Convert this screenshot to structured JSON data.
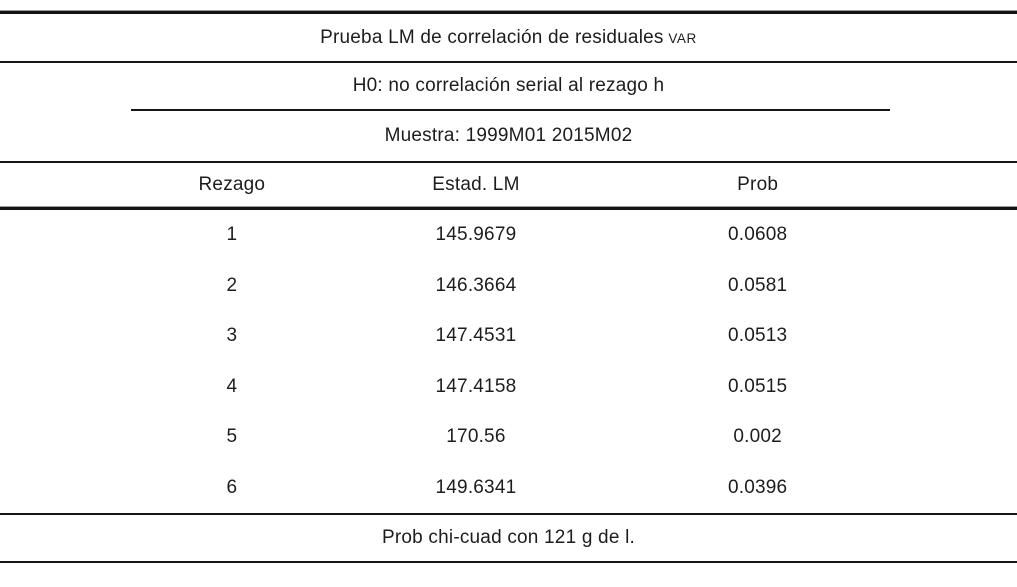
{
  "table": {
    "title": {
      "main": "Prueba LM de correlación de residuales",
      "suffix_smallcaps": "VAR"
    },
    "hypothesis": "H0: no correlación serial al rezago h",
    "sample": "Muestra: 1999M01 2015M02",
    "columns": {
      "lag": "Rezago",
      "lm_stat": "Estad. LM",
      "prob": "Prob"
    },
    "rows": [
      {
        "lag": "1",
        "lm": "145.9679",
        "prob": "0.0608"
      },
      {
        "lag": "2",
        "lm": "146.3664",
        "prob": "0.0581"
      },
      {
        "lag": "3",
        "lm": "147.4531",
        "prob": "0.0513"
      },
      {
        "lag": "4",
        "lm": "147.4158",
        "prob": "0.0515"
      },
      {
        "lag": "5",
        "lm": "170.56",
        "prob": "0.002"
      },
      {
        "lag": "6",
        "lm": "149.6341",
        "prob": "0.0396"
      }
    ],
    "footnote": "Prob chi-cuad con 121 g de l.",
    "colors": {
      "text": "#1d1d1d",
      "rule": "#161616",
      "background": "#ffffff"
    }
  },
  "chart_data": {
    "type": "table",
    "title": "Prueba LM de correlación de residuales VAR",
    "subtitle": "H0: no correlación serial al rezago h",
    "sample": "Muestra: 1999M01 2015M02",
    "columns": [
      "Rezago",
      "Estad. LM",
      "Prob"
    ],
    "rows": [
      [
        1,
        145.9679,
        0.0608
      ],
      [
        2,
        146.3664,
        0.0581
      ],
      [
        3,
        147.4531,
        0.0513
      ],
      [
        4,
        147.4158,
        0.0515
      ],
      [
        5,
        170.56,
        0.002
      ],
      [
        6,
        149.6341,
        0.0396
      ]
    ],
    "notes": [
      "Prob chi-cuad con 121 g de l."
    ]
  }
}
